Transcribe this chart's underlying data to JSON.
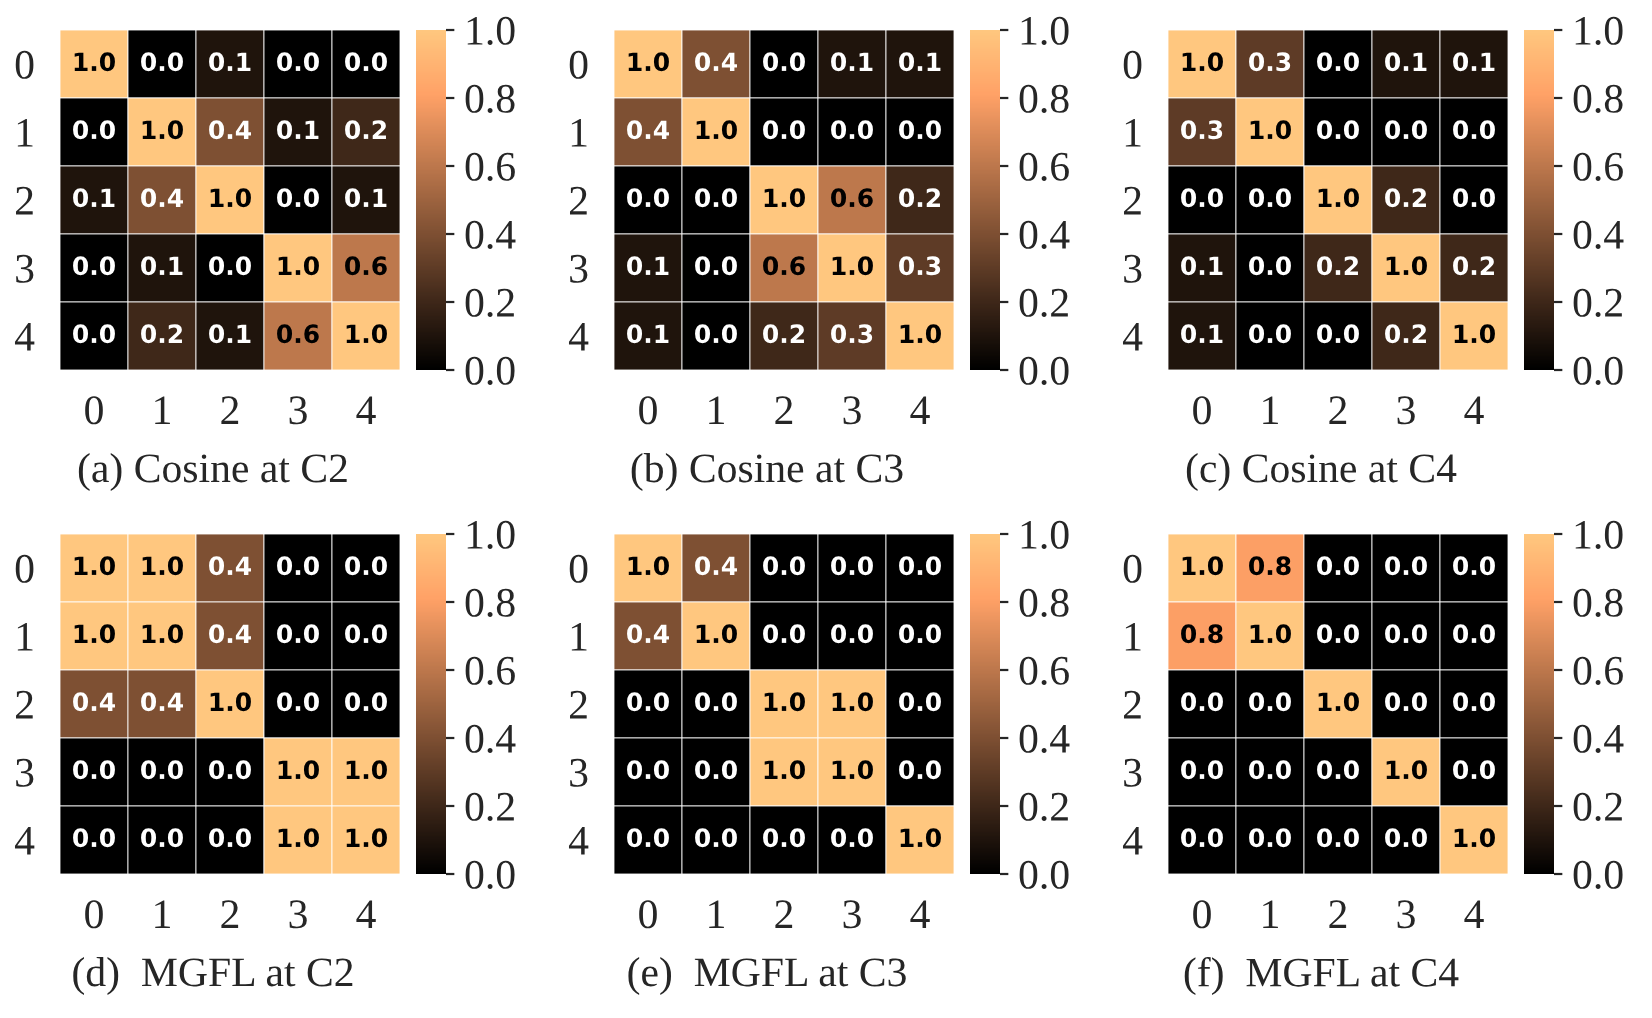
{
  "chart_data": [
    {
      "type": "heatmap",
      "title": "(a) Cosine at C2",
      "categories": [
        "0",
        "1",
        "2",
        "3",
        "4"
      ],
      "y_categories": [
        "0",
        "1",
        "2",
        "3",
        "4"
      ],
      "cells": [
        [
          1.0,
          0.0,
          0.1,
          0.0,
          0.0
        ],
        [
          0.0,
          1.0,
          0.4,
          0.1,
          0.2
        ],
        [
          0.1,
          0.4,
          1.0,
          0.0,
          0.1
        ],
        [
          0.0,
          0.1,
          0.0,
          1.0,
          0.6
        ],
        [
          0.0,
          0.2,
          0.1,
          0.6,
          1.0
        ]
      ],
      "cell_labels": [
        [
          "1.0",
          "0.0",
          "0.1",
          "0.0",
          "0.0"
        ],
        [
          "0.0",
          "1.0",
          "0.4",
          "0.1",
          "0.2"
        ],
        [
          "0.1",
          "0.4",
          "1.0",
          "0.0",
          "0.1"
        ],
        [
          "0.0",
          "0.1",
          "0.0",
          "1.0",
          "0.6"
        ],
        [
          "0.0",
          "0.2",
          "0.1",
          "0.6",
          "1.0"
        ]
      ],
      "clim": [
        0.0,
        1.0
      ],
      "cticks": [
        {
          "value": 0,
          "label": "0.0"
        },
        {
          "value": 0.2,
          "label": "0.2"
        },
        {
          "value": 0.4,
          "label": "0.4"
        },
        {
          "value": 0.6,
          "label": "0.6"
        },
        {
          "value": 0.8,
          "label": "0.8"
        },
        {
          "value": 1,
          "label": "1.0"
        }
      ]
    },
    {
      "type": "heatmap",
      "title": "(b) Cosine at C3",
      "categories": [
        "0",
        "1",
        "2",
        "3",
        "4"
      ],
      "y_categories": [
        "0",
        "1",
        "2",
        "3",
        "4"
      ],
      "cells": [
        [
          1.0,
          0.4,
          0.0,
          0.1,
          0.1
        ],
        [
          0.4,
          1.0,
          0.0,
          0.0,
          0.0
        ],
        [
          0.0,
          0.0,
          1.0,
          0.6,
          0.2
        ],
        [
          0.1,
          0.0,
          0.6,
          1.0,
          0.3
        ],
        [
          0.1,
          0.0,
          0.2,
          0.3,
          1.0
        ]
      ],
      "cell_labels": [
        [
          "1.0",
          "0.4",
          "0.0",
          "0.1",
          "0.1"
        ],
        [
          "0.4",
          "1.0",
          "0.0",
          "0.0",
          "0.0"
        ],
        [
          "0.0",
          "0.0",
          "1.0",
          "0.6",
          "0.2"
        ],
        [
          "0.1",
          "0.0",
          "0.6",
          "1.0",
          "0.3"
        ],
        [
          "0.1",
          "0.0",
          "0.2",
          "0.3",
          "1.0"
        ]
      ],
      "clim": [
        0.0,
        1.0
      ],
      "cticks": [
        {
          "value": 0,
          "label": "0.0"
        },
        {
          "value": 0.2,
          "label": "0.2"
        },
        {
          "value": 0.4,
          "label": "0.4"
        },
        {
          "value": 0.6,
          "label": "0.6"
        },
        {
          "value": 0.8,
          "label": "0.8"
        },
        {
          "value": 1,
          "label": "1.0"
        }
      ]
    },
    {
      "type": "heatmap",
      "title": "(c) Cosine at C4",
      "categories": [
        "0",
        "1",
        "2",
        "3",
        "4"
      ],
      "y_categories": [
        "0",
        "1",
        "2",
        "3",
        "4"
      ],
      "cells": [
        [
          1.0,
          0.3,
          0.0,
          0.1,
          0.1
        ],
        [
          0.3,
          1.0,
          0.0,
          0.0,
          0.0
        ],
        [
          0.0,
          0.0,
          1.0,
          0.2,
          0.0
        ],
        [
          0.1,
          0.0,
          0.2,
          1.0,
          0.2
        ],
        [
          0.1,
          0.0,
          0.0,
          0.2,
          1.0
        ]
      ],
      "cell_labels": [
        [
          "1.0",
          "0.3",
          "0.0",
          "0.1",
          "0.1"
        ],
        [
          "0.3",
          "1.0",
          "0.0",
          "0.0",
          "0.0"
        ],
        [
          "0.0",
          "0.0",
          "1.0",
          "0.2",
          "0.0"
        ],
        [
          "0.1",
          "0.0",
          "0.2",
          "1.0",
          "0.2"
        ],
        [
          "0.1",
          "0.0",
          "0.0",
          "0.2",
          "1.0"
        ]
      ],
      "clim": [
        0.0,
        1.0
      ],
      "cticks": [
        {
          "value": 0,
          "label": "0.0"
        },
        {
          "value": 0.2,
          "label": "0.2"
        },
        {
          "value": 0.4,
          "label": "0.4"
        },
        {
          "value": 0.6,
          "label": "0.6"
        },
        {
          "value": 0.8,
          "label": "0.8"
        },
        {
          "value": 1,
          "label": "1.0"
        }
      ]
    },
    {
      "type": "heatmap",
      "title": "(d)  MGFL at C2",
      "categories": [
        "0",
        "1",
        "2",
        "3",
        "4"
      ],
      "y_categories": [
        "0",
        "1",
        "2",
        "3",
        "4"
      ],
      "cells": [
        [
          1.0,
          1.0,
          0.4,
          0.0,
          0.0
        ],
        [
          1.0,
          1.0,
          0.4,
          0.0,
          0.0
        ],
        [
          0.4,
          0.4,
          1.0,
          0.0,
          0.0
        ],
        [
          0.0,
          0.0,
          0.0,
          1.0,
          1.0
        ],
        [
          0.0,
          0.0,
          0.0,
          1.0,
          1.0
        ]
      ],
      "cell_labels": [
        [
          "1.0",
          "1.0",
          "0.4",
          "0.0",
          "0.0"
        ],
        [
          "1.0",
          "1.0",
          "0.4",
          "0.0",
          "0.0"
        ],
        [
          "0.4",
          "0.4",
          "1.0",
          "0.0",
          "0.0"
        ],
        [
          "0.0",
          "0.0",
          "0.0",
          "1.0",
          "1.0"
        ],
        [
          "0.0",
          "0.0",
          "0.0",
          "1.0",
          "1.0"
        ]
      ],
      "clim": [
        0.0,
        1.0
      ],
      "cticks": [
        {
          "value": 0,
          "label": "0.0"
        },
        {
          "value": 0.2,
          "label": "0.2"
        },
        {
          "value": 0.4,
          "label": "0.4"
        },
        {
          "value": 0.6,
          "label": "0.6"
        },
        {
          "value": 0.8,
          "label": "0.8"
        },
        {
          "value": 1,
          "label": "1.0"
        }
      ]
    },
    {
      "type": "heatmap",
      "title": "(e)  MGFL at C3",
      "categories": [
        "0",
        "1",
        "2",
        "3",
        "4"
      ],
      "y_categories": [
        "0",
        "1",
        "2",
        "3",
        "4"
      ],
      "cells": [
        [
          1.0,
          0.4,
          0.0,
          0.0,
          0.0
        ],
        [
          0.4,
          1.0,
          0.0,
          0.0,
          0.0
        ],
        [
          0.0,
          0.0,
          1.0,
          1.0,
          0.0
        ],
        [
          0.0,
          0.0,
          1.0,
          1.0,
          0.0
        ],
        [
          0.0,
          0.0,
          0.0,
          0.0,
          1.0
        ]
      ],
      "cell_labels": [
        [
          "1.0",
          "0.4",
          "0.0",
          "0.0",
          "0.0"
        ],
        [
          "0.4",
          "1.0",
          "0.0",
          "0.0",
          "0.0"
        ],
        [
          "0.0",
          "0.0",
          "1.0",
          "1.0",
          "0.0"
        ],
        [
          "0.0",
          "0.0",
          "1.0",
          "1.0",
          "0.0"
        ],
        [
          "0.0",
          "0.0",
          "0.0",
          "0.0",
          "1.0"
        ]
      ],
      "clim": [
        0.0,
        1.0
      ],
      "cticks": [
        {
          "value": 0,
          "label": "0.0"
        },
        {
          "value": 0.2,
          "label": "0.2"
        },
        {
          "value": 0.4,
          "label": "0.4"
        },
        {
          "value": 0.6,
          "label": "0.6"
        },
        {
          "value": 0.8,
          "label": "0.8"
        },
        {
          "value": 1,
          "label": "1.0"
        }
      ]
    },
    {
      "type": "heatmap",
      "title": "(f)  MGFL at C4",
      "categories": [
        "0",
        "1",
        "2",
        "3",
        "4"
      ],
      "y_categories": [
        "0",
        "1",
        "2",
        "3",
        "4"
      ],
      "cells": [
        [
          1.0,
          0.8,
          0.0,
          0.0,
          0.0
        ],
        [
          0.8,
          1.0,
          0.0,
          0.0,
          0.0
        ],
        [
          0.0,
          0.0,
          1.0,
          0.0,
          0.0
        ],
        [
          0.0,
          0.0,
          0.0,
          1.0,
          0.0
        ],
        [
          0.0,
          0.0,
          0.0,
          0.0,
          1.0
        ]
      ],
      "cell_labels": [
        [
          "1.0",
          "0.8",
          "0.0",
          "0.0",
          "0.0"
        ],
        [
          "0.8",
          "1.0",
          "0.0",
          "0.0",
          "0.0"
        ],
        [
          "0.0",
          "0.0",
          "1.0",
          "0.0",
          "0.0"
        ],
        [
          "0.0",
          "0.0",
          "0.0",
          "1.0",
          "0.0"
        ],
        [
          "0.0",
          "0.0",
          "0.0",
          "0.0",
          "1.0"
        ]
      ],
      "clim": [
        0.0,
        1.0
      ],
      "cticks": [
        {
          "value": 0,
          "label": "0.0"
        },
        {
          "value": 0.2,
          "label": "0.2"
        },
        {
          "value": 0.4,
          "label": "0.4"
        },
        {
          "value": 0.6,
          "label": "0.6"
        },
        {
          "value": 0.8,
          "label": "0.8"
        },
        {
          "value": 1,
          "label": "1.0"
        }
      ]
    }
  ]
}
